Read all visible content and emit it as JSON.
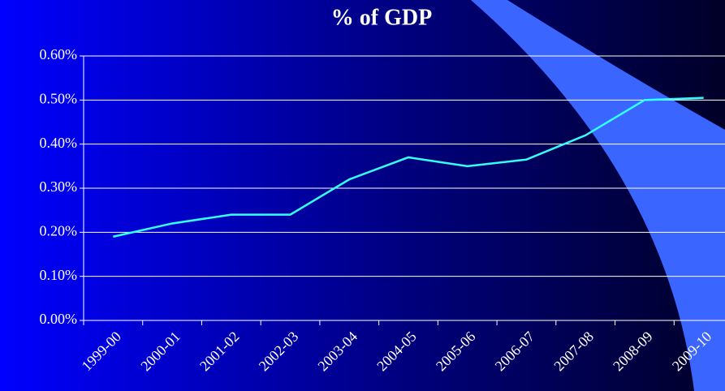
{
  "chart_data": {
    "type": "line",
    "title": "% of GDP",
    "categories": [
      "1999-00",
      "2000-01",
      "2001-02",
      "2002-03",
      "2003-04",
      "2004-05",
      "2005-06",
      "2006-07",
      "2007-08",
      "2008-09",
      "2009-10"
    ],
    "series": [
      {
        "name": "% of GDP",
        "color": "#33ffff",
        "values": [
          0.19,
          0.22,
          0.24,
          0.24,
          0.32,
          0.37,
          0.35,
          0.365,
          0.42,
          0.5,
          0.505
        ]
      }
    ],
    "ylim": [
      0,
      0.6
    ],
    "yticks": [
      {
        "value": 0,
        "label": "0.00%"
      },
      {
        "value": 0.1,
        "label": "0.10%"
      },
      {
        "value": 0.2,
        "label": "0.20%"
      },
      {
        "value": 0.3,
        "label": "0.30%"
      },
      {
        "value": 0.4,
        "label": "0.40%"
      },
      {
        "value": 0.5,
        "label": "0.50%"
      },
      {
        "value": 0.6,
        "label": "0.60%"
      }
    ],
    "grid": true
  }
}
